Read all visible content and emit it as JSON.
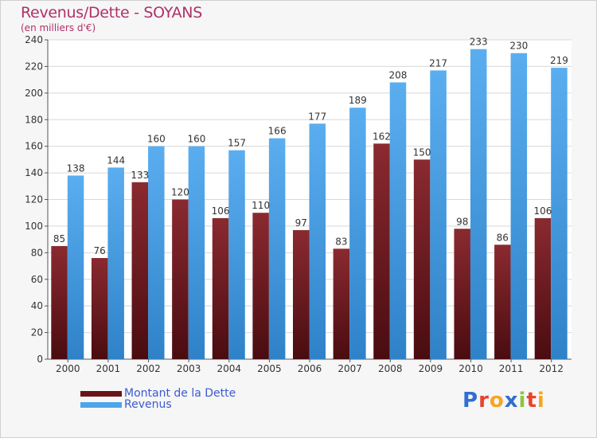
{
  "chart_data": {
    "type": "bar",
    "title": "Revenus/Dette - SOYANS",
    "subtitle": "(en milliers d'€)",
    "categories": [
      "2000",
      "2001",
      "2002",
      "2003",
      "2004",
      "2005",
      "2006",
      "2007",
      "2008",
      "2009",
      "2010",
      "2011",
      "2012"
    ],
    "series": [
      {
        "name": "Montant de la Dette",
        "color": "#7a1c22",
        "values": [
          85,
          76,
          133,
          120,
          106,
          110,
          97,
          83,
          162,
          150,
          98,
          86,
          106
        ]
      },
      {
        "name": "Revenus",
        "color": "#4ea5ea",
        "values": [
          138,
          144,
          160,
          160,
          157,
          166,
          177,
          189,
          208,
          217,
          233,
          230,
          219
        ]
      }
    ],
    "ylim": [
      0,
      240
    ],
    "yticks": [
      0,
      20,
      40,
      60,
      80,
      100,
      120,
      140,
      160,
      180,
      200,
      220,
      240
    ],
    "grid": true,
    "legend": "bottom-left"
  },
  "logo": {
    "text": "Proxiti",
    "colors": [
      "#2f6fcf",
      "#e8432f",
      "#f5a623",
      "#2f6fcf",
      "#8cc63f",
      "#e8432f",
      "#f5a623"
    ]
  }
}
